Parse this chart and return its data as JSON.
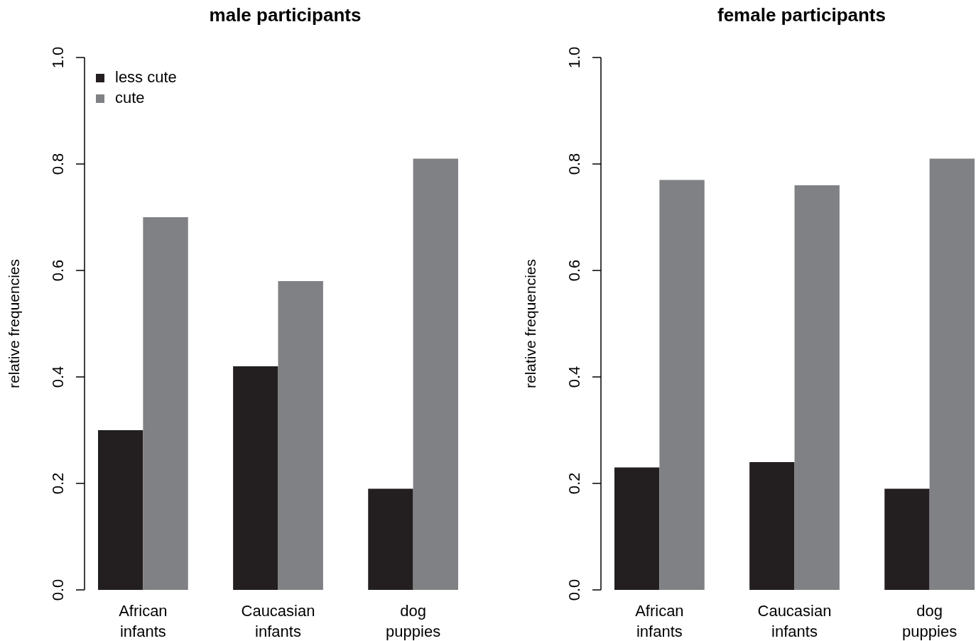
{
  "chart_data": [
    {
      "type": "bar",
      "title": "male participants",
      "ylabel": "relative frequencies",
      "categories": [
        "African infants",
        "Caucasian infants",
        "dog puppies"
      ],
      "series": [
        {
          "name": "less cute",
          "color": "#231f20",
          "values": [
            0.3,
            0.42,
            0.19
          ]
        },
        {
          "name": "cute",
          "color": "#808184",
          "values": [
            0.7,
            0.58,
            0.81
          ]
        }
      ],
      "ylim": [
        0,
        1
      ],
      "yticks": [
        {
          "value": 0,
          "label": "0.0"
        },
        {
          "value": 0.2,
          "label": "0.2"
        },
        {
          "value": 0.4,
          "label": "0.4"
        },
        {
          "value": 0.6,
          "label": "0.6"
        },
        {
          "value": 0.8,
          "label": "0.8"
        },
        {
          "value": 1,
          "label": "1.0"
        }
      ],
      "grid": false,
      "legend": "top left"
    },
    {
      "type": "bar",
      "title": "female participants",
      "ylabel": "relative frequencies",
      "categories": [
        "African infants",
        "Caucasian infants",
        "dog puppies"
      ],
      "series": [
        {
          "color": "#231f20",
          "values": [
            0.23,
            0.24,
            0.19
          ]
        },
        {
          "color": "#808184",
          "values": [
            0.77,
            0.76,
            0.81
          ]
        }
      ],
      "ylim": [
        0,
        1
      ],
      "yticks": [
        {
          "value": 0,
          "label": "0.0"
        },
        {
          "value": 0.2,
          "label": "0.2"
        },
        {
          "value": 0.4,
          "label": "0.4"
        },
        {
          "value": 0.6,
          "label": "0.6"
        },
        {
          "value": 0.8,
          "label": "0.8"
        },
        {
          "value": 1,
          "label": "1.0"
        }
      ],
      "grid": false,
      "legend": false
    }
  ]
}
